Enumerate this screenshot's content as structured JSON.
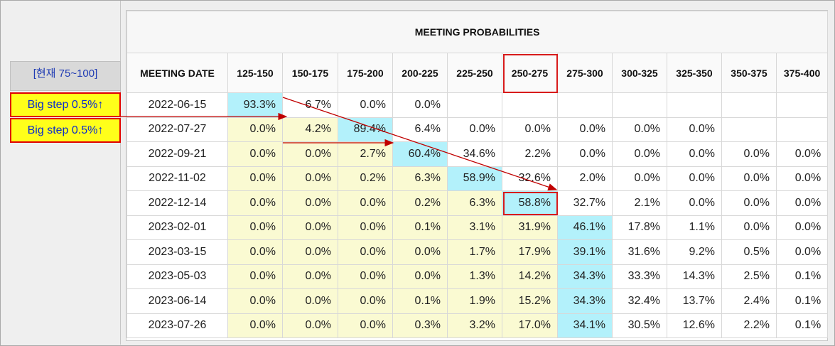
{
  "left_panel": {
    "current_label": "[현재 75~100]",
    "big_steps": [
      "Big step 0.5%↑",
      "Big step 0.5%↑"
    ]
  },
  "table": {
    "title": "MEETING PROBABILITIES",
    "date_header": "MEETING DATE",
    "ranges": [
      "125-150",
      "150-175",
      "175-200",
      "200-225",
      "225-250",
      "250-275",
      "275-300",
      "300-325",
      "325-350",
      "350-375",
      "375-400"
    ],
    "rows": [
      {
        "date": "2022-06-15",
        "values": [
          "93.3%",
          "6.7%",
          "0.0%",
          "0.0%",
          "",
          "",
          "",
          "",
          "",
          "",
          ""
        ]
      },
      {
        "date": "2022-07-27",
        "values": [
          "0.0%",
          "4.2%",
          "89.4%",
          "6.4%",
          "0.0%",
          "0.0%",
          "0.0%",
          "0.0%",
          "0.0%",
          "",
          ""
        ]
      },
      {
        "date": "2022-09-21",
        "values": [
          "0.0%",
          "0.0%",
          "2.7%",
          "60.4%",
          "34.6%",
          "2.2%",
          "0.0%",
          "0.0%",
          "0.0%",
          "0.0%",
          "0.0%"
        ]
      },
      {
        "date": "2022-11-02",
        "values": [
          "0.0%",
          "0.0%",
          "0.2%",
          "6.3%",
          "58.9%",
          "32.6%",
          "2.0%",
          "0.0%",
          "0.0%",
          "0.0%",
          "0.0%"
        ]
      },
      {
        "date": "2022-12-14",
        "values": [
          "0.0%",
          "0.0%",
          "0.0%",
          "0.2%",
          "6.3%",
          "58.8%",
          "32.7%",
          "2.1%",
          "0.0%",
          "0.0%",
          "0.0%"
        ]
      },
      {
        "date": "2023-02-01",
        "values": [
          "0.0%",
          "0.0%",
          "0.0%",
          "0.1%",
          "3.1%",
          "31.9%",
          "46.1%",
          "17.8%",
          "1.1%",
          "0.0%",
          "0.0%"
        ]
      },
      {
        "date": "2023-03-15",
        "values": [
          "0.0%",
          "0.0%",
          "0.0%",
          "0.0%",
          "1.7%",
          "17.9%",
          "39.1%",
          "31.6%",
          "9.2%",
          "0.5%",
          "0.0%"
        ]
      },
      {
        "date": "2023-05-03",
        "values": [
          "0.0%",
          "0.0%",
          "0.0%",
          "0.0%",
          "1.3%",
          "14.2%",
          "34.3%",
          "33.3%",
          "14.3%",
          "2.5%",
          "0.1%"
        ]
      },
      {
        "date": "2023-06-14",
        "values": [
          "0.0%",
          "0.0%",
          "0.0%",
          "0.1%",
          "1.9%",
          "15.2%",
          "34.3%",
          "32.4%",
          "13.7%",
          "2.4%",
          "0.1%"
        ]
      },
      {
        "date": "2023-07-26",
        "values": [
          "0.0%",
          "0.0%",
          "0.0%",
          "0.3%",
          "3.2%",
          "17.0%",
          "34.1%",
          "30.5%",
          "12.6%",
          "2.2%",
          "0.1%"
        ]
      }
    ],
    "highlight_column": "250-275",
    "highlight_cell": {
      "date": "2022-12-14",
      "range": "250-275"
    }
  },
  "colors": {
    "yellow": "#fafad2",
    "cyan": "#b3f1fb",
    "red": "#d81b1b",
    "bigstep_bg": "#ffff1a",
    "link_blue": "#1f3bb3"
  }
}
